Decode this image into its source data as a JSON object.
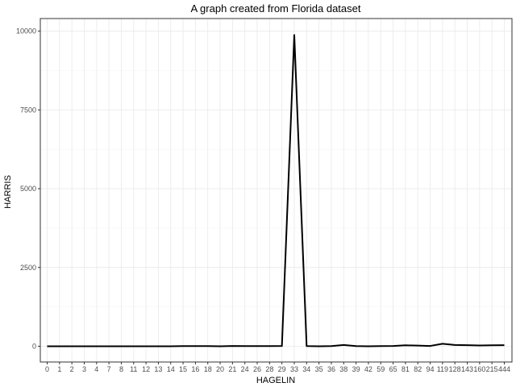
{
  "chart_data": {
    "type": "line",
    "title": "A graph created from Florida dataset",
    "xlabel": "HAGELIN",
    "ylabel": "HARRIS",
    "categories": [
      "0",
      "1",
      "2",
      "3",
      "4",
      "7",
      "8",
      "11",
      "12",
      "13",
      "14",
      "15",
      "16",
      "18",
      "20",
      "21",
      "24",
      "26",
      "28",
      "29",
      "33",
      "34",
      "35",
      "36",
      "38",
      "39",
      "42",
      "59",
      "65",
      "81",
      "82",
      "94",
      "119",
      "128",
      "143",
      "160",
      "215",
      "444"
    ],
    "values": [
      0,
      0,
      0,
      0,
      0,
      0,
      0,
      0,
      0,
      0,
      0,
      5,
      5,
      5,
      0,
      10,
      5,
      5,
      5,
      10,
      9880,
      5,
      0,
      5,
      40,
      5,
      0,
      5,
      10,
      30,
      20,
      10,
      80,
      40,
      35,
      25,
      30,
      35
    ],
    "yticks": [
      0,
      2500,
      5000,
      7500,
      10000
    ],
    "ylim": [
      -500,
      10400
    ],
    "grid": true,
    "line_color": "#000000",
    "panel_border": "#333333",
    "grid_color": "#ebebeb"
  }
}
